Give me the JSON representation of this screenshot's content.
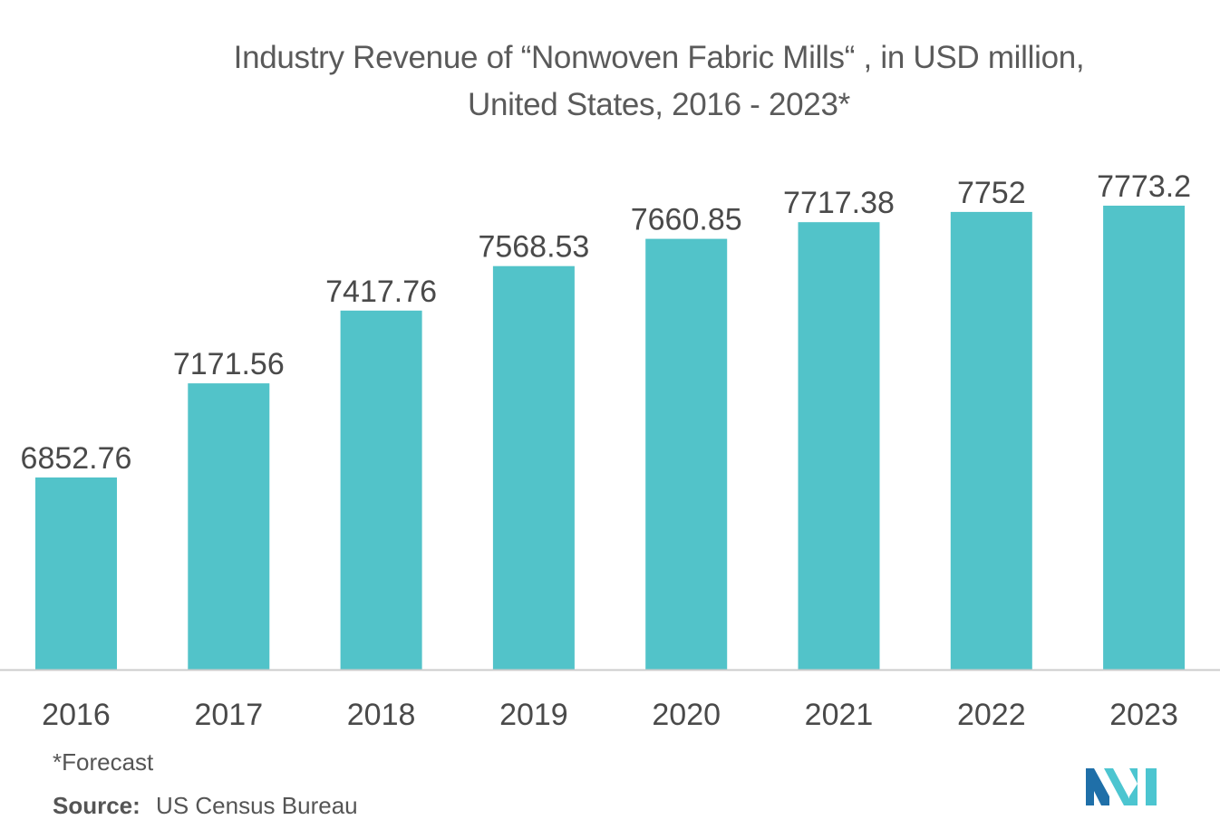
{
  "chart_data": {
    "type": "bar",
    "title_line1": "Industry Revenue of “Nonwoven Fabric Mills“ , in USD million,",
    "title_line2": "United States, 2016 - 2023*",
    "categories": [
      "2016",
      "2017",
      "2018",
      "2019",
      "2020",
      "2021",
      "2022",
      "2023"
    ],
    "values": [
      6852.76,
      7171.56,
      7417.76,
      7568.53,
      7660.85,
      7717.38,
      7752,
      7773.2
    ],
    "value_labels": [
      "6852.76",
      "7171.56",
      "7417.76",
      "7568.53",
      "7660.85",
      "7717.38",
      "7752",
      "7773.2"
    ],
    "xlabel": "",
    "ylabel": "",
    "grid": false,
    "legend": "none",
    "bar_color": "#52c3c9"
  },
  "footnote": "*Forecast",
  "source": {
    "label": "Source:",
    "text": "US Census Bureau"
  },
  "logo": {
    "icon": "mordor-intelligence-logo-icon",
    "colors": [
      "#1f6fa8",
      "#4cc5d0"
    ]
  }
}
